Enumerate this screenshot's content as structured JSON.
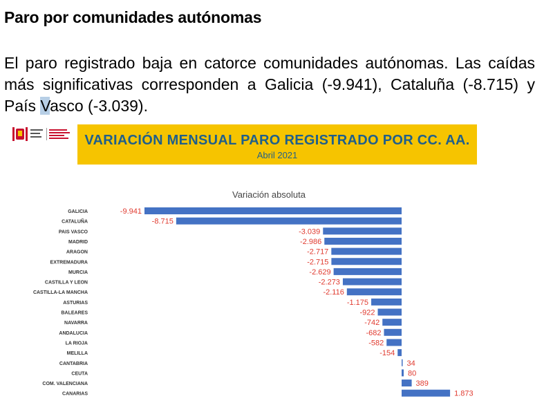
{
  "heading": "Paro por comunidades autónomas",
  "paragraph": {
    "part1": "El paro registrado baja en catorce comunidades autónomas. Las caídas más significativas corresponden a Galicia (-9.941), Cataluña (-8.715) y País ",
    "highlight": "V",
    "part2": "asco (-3.039)."
  },
  "banner": {
    "title": "VARIACIÓN MENSUAL PARO REGISTRADO POR CC. AA.",
    "subtitle": "Abril 2021"
  },
  "colors": {
    "banner_bg": "#f6c400",
    "banner_text": "#1f5f8b",
    "bar": "#4472c4",
    "value_label": "#e03a2f"
  },
  "chart_data": {
    "type": "bar",
    "orientation": "horizontal",
    "title": "Variación absoluta",
    "categories": [
      "GALICIA",
      "CATALUÑA",
      "PAIS VASCO",
      "MADRID",
      "ARAGON",
      "EXTREMADURA",
      "MURCIA",
      "CASTILLA Y LEON",
      "CASTILLA-LA MANCHA",
      "ASTURIAS",
      "BALEARES",
      "NAVARRA",
      "ANDALUCIA",
      "LA RIOJA",
      "MELILLA",
      "CANTABRIA",
      "CEUTA",
      "COM. VALENCIANA",
      "CANARIAS"
    ],
    "values": [
      -9941,
      -8715,
      -3039,
      -2986,
      -2717,
      -2715,
      -2629,
      -2273,
      -2116,
      -1175,
      -922,
      -742,
      -682,
      -582,
      -154,
      34,
      80,
      389,
      1873
    ],
    "value_labels": [
      "-9.941",
      "-8.715",
      "-3.039",
      "-2.986",
      "-2.717",
      "-2.715",
      "-2.629",
      "-2.273",
      "-2.116",
      "-1.175",
      "-922",
      "-742",
      "-682",
      "-582",
      "-154",
      "34",
      "80",
      "389",
      "1.873"
    ],
    "xlim": [
      -9941,
      1873
    ],
    "grid": false,
    "legend": "none"
  }
}
